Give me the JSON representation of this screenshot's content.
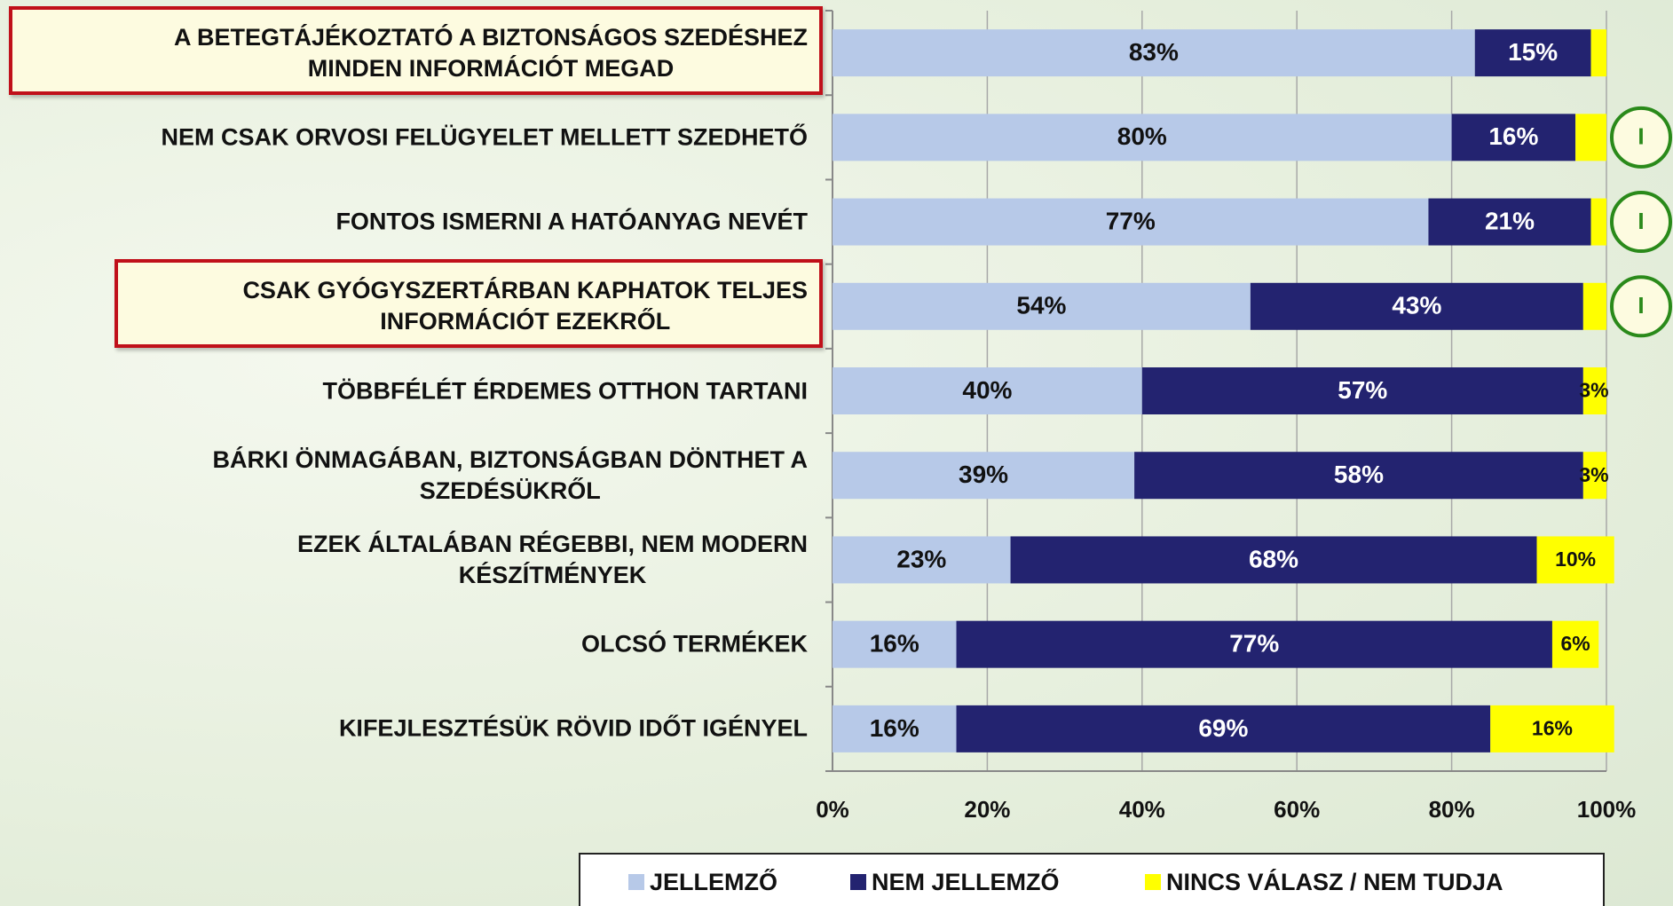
{
  "chart_data": {
    "type": "stacked-bar-horizontal",
    "categories": [
      "A BETEGTÁJÉKOZTATÓ A BIZTONSÁGOS SZEDÉSHEZ\nMINDEN INFORMÁCIÓT MEGAD",
      "NEM CSAK ORVOSI FELÜGYELET MELLETT SZEDHETŐ",
      "FONTOS ISMERNI A HATÓANYAG NEVÉT",
      "CSAK GYÓGYSZERTÁRBAN KAPHATOK TELJES\nINFORMÁCIÓT EZEKRŐL",
      "TÖBBFÉLÉT ÉRDEMES OTTHON TARTANI",
      "BÁRKI ÖNMAGÁBAN, BIZTONSÁGBAN DÖNTHET A\nSZEDÉSÜKRŐL",
      "EZEK ÁLTALÁBAN RÉGEBBI, NEM MODERN\nKÉSZÍTMÉNYEK",
      "OLCSÓ TERMÉKEK",
      "KIFEJLESZTÉSÜK RÖVID IDŐT IGÉNYEL"
    ],
    "highlighted": [
      true,
      false,
      false,
      true,
      false,
      false,
      false,
      false,
      false
    ],
    "annotations": [
      null,
      "I",
      "I",
      "I",
      null,
      null,
      null,
      null,
      null
    ],
    "series": [
      {
        "name": "JELLEMZŐ",
        "color": "#b7c9e8",
        "values": [
          83,
          80,
          77,
          54,
          40,
          39,
          23,
          16,
          16
        ],
        "value_labels": [
          "83%",
          "80%",
          "77%",
          "54%",
          "40%",
          "39%",
          "23%",
          "16%",
          "16%"
        ]
      },
      {
        "name": "NEM JELLEMZŐ",
        "color": "#232370",
        "values": [
          15,
          16,
          21,
          43,
          57,
          58,
          68,
          77,
          69
        ],
        "value_labels": [
          "15%",
          "16%",
          "21%",
          "43%",
          "57%",
          "58%",
          "68%",
          "77%",
          "69%"
        ]
      },
      {
        "name": "NINCS VÁLASZ / NEM TUDJA",
        "color": "#ffff00",
        "values": [
          2,
          4,
          2,
          3,
          3,
          3,
          10,
          6,
          16
        ],
        "value_labels": [
          null,
          null,
          null,
          null,
          "3%",
          "3%",
          "10%",
          "6%",
          "16%"
        ]
      }
    ],
    "xlim": [
      0,
      100
    ],
    "xticks": [
      {
        "value": 0,
        "label": "0%"
      },
      {
        "value": 20,
        "label": "20%"
      },
      {
        "value": 40,
        "label": "40%"
      },
      {
        "value": 60,
        "label": "60%"
      },
      {
        "value": 80,
        "label": "80%"
      },
      {
        "value": 100,
        "label": "100%"
      }
    ],
    "grid": true,
    "legend": "bottom"
  }
}
